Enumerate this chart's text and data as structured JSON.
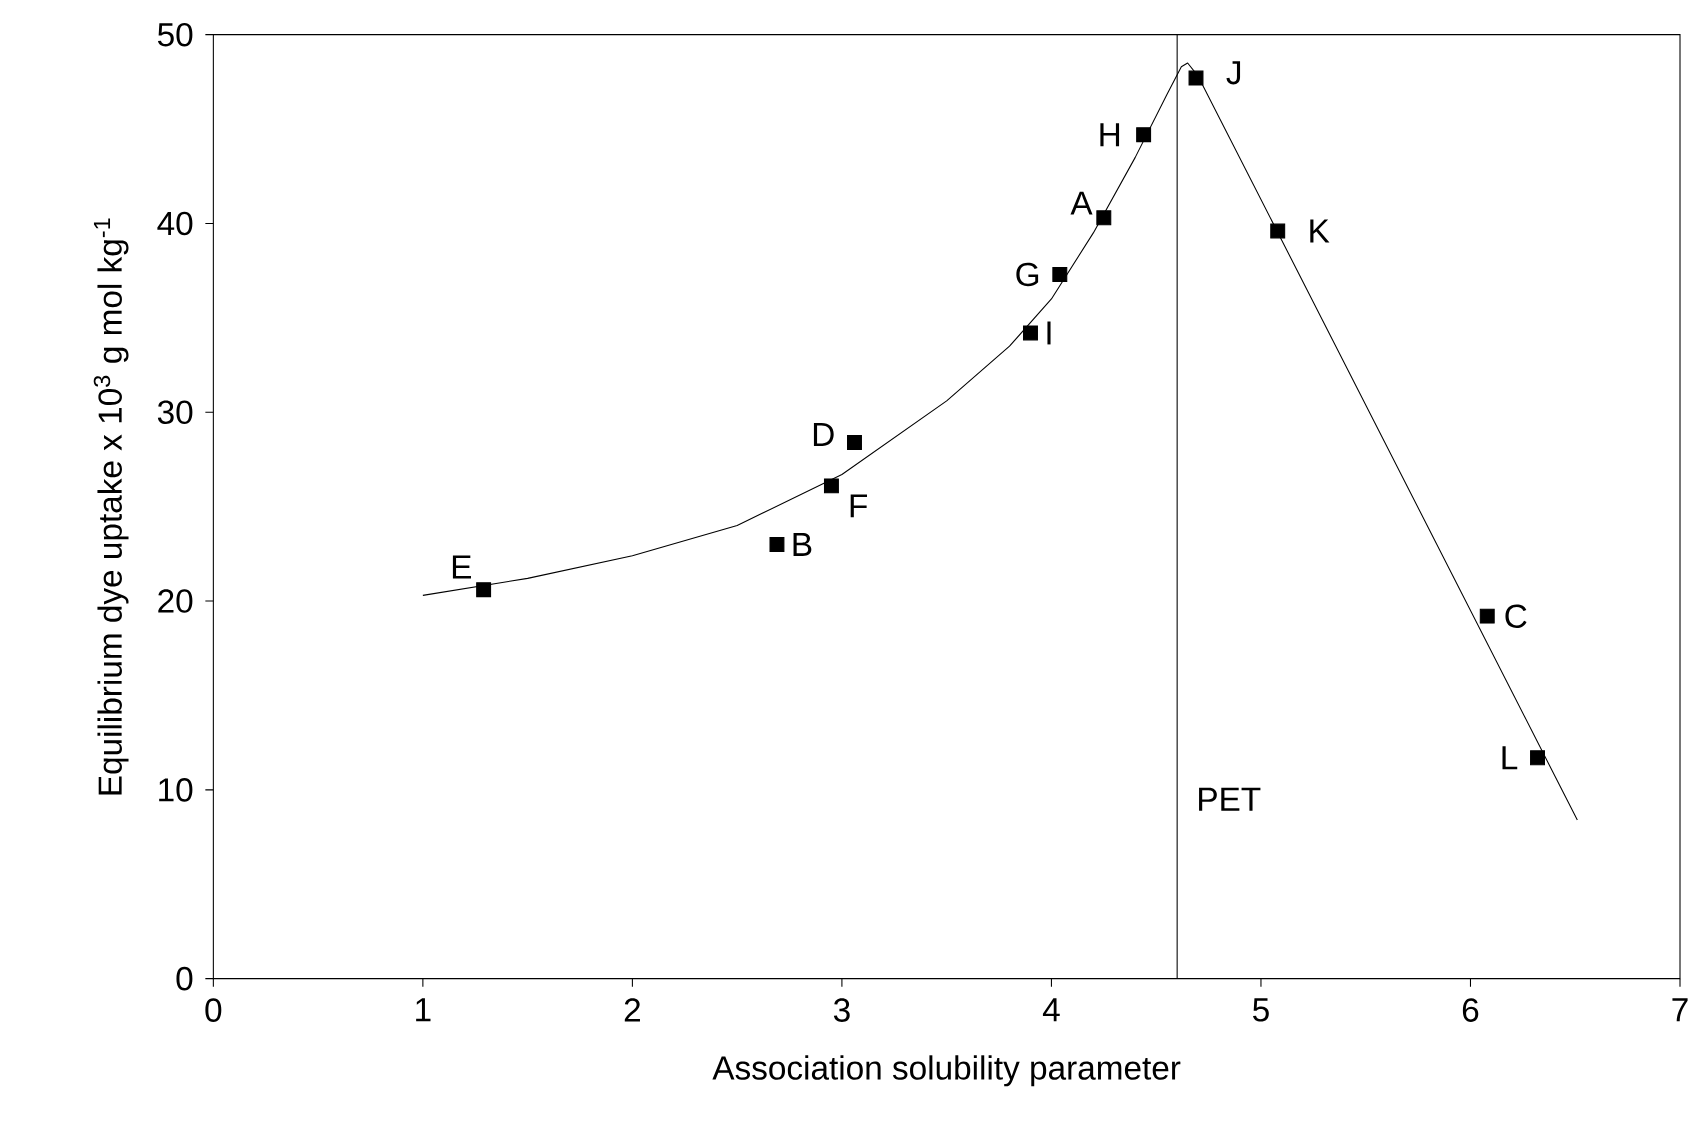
{
  "chart_data": {
    "type": "scatter",
    "xlabel": "Association solubility parameter",
    "ylabel": "Equilibrium dye uptake x 10$^{3}$ g mol kg$^{-1}$",
    "xlim": [
      0,
      7
    ],
    "ylim": [
      0,
      50
    ],
    "xticks": [
      0,
      1,
      2,
      3,
      4,
      5,
      6,
      7
    ],
    "yticks": [
      0,
      10,
      20,
      30,
      40,
      50
    ],
    "grid": false,
    "series": [
      {
        "type": "scatter",
        "marker": "square",
        "color": "#000000",
        "x": [
          1.29,
          2.69,
          2.95,
          3.06,
          3.9,
          4.04,
          4.25,
          4.44,
          4.69,
          5.08,
          6.08,
          6.32
        ],
        "values": [
          20.6,
          23.0,
          26.1,
          28.4,
          34.2,
          37.3,
          40.3,
          44.7,
          47.7,
          39.6,
          19.2,
          11.7
        ]
      },
      {
        "type": "line",
        "marker": "none",
        "line_style": "solid",
        "color": "#000000",
        "x": [
          1.0,
          1.5,
          2.0,
          2.5,
          3.0,
          3.5,
          3.8,
          4.0,
          4.2,
          4.4,
          4.55,
          4.62,
          4.65,
          4.7,
          6.51
        ],
        "values": [
          20.3,
          21.2,
          22.4,
          24.0,
          26.7,
          30.6,
          33.5,
          36.0,
          39.5,
          43.5,
          46.8,
          48.3,
          48.5,
          47.8,
          8.4
        ]
      }
    ],
    "ref_lines": [
      {
        "axis": "x",
        "value": 4.6,
        "label": "PET",
        "color": "#000000"
      }
    ],
    "annotations": [
      {
        "text": "E",
        "x": 1.29,
        "y": 20.6
      },
      {
        "text": "B",
        "x": 2.69,
        "y": 23.0
      },
      {
        "text": "F",
        "x": 2.95,
        "y": 26.1
      },
      {
        "text": "D",
        "x": 3.06,
        "y": 28.4
      },
      {
        "text": "I",
        "x": 3.9,
        "y": 34.2
      },
      {
        "text": "G",
        "x": 4.04,
        "y": 37.3
      },
      {
        "text": "A",
        "x": 4.25,
        "y": 40.3
      },
      {
        "text": "H",
        "x": 4.44,
        "y": 44.7
      },
      {
        "text": "J",
        "x": 4.69,
        "y": 47.7
      },
      {
        "text": "K",
        "x": 5.08,
        "y": 39.6
      },
      {
        "text": "C",
        "x": 6.08,
        "y": 19.2
      },
      {
        "text": "L",
        "x": 6.32,
        "y": 11.7
      }
    ]
  }
}
